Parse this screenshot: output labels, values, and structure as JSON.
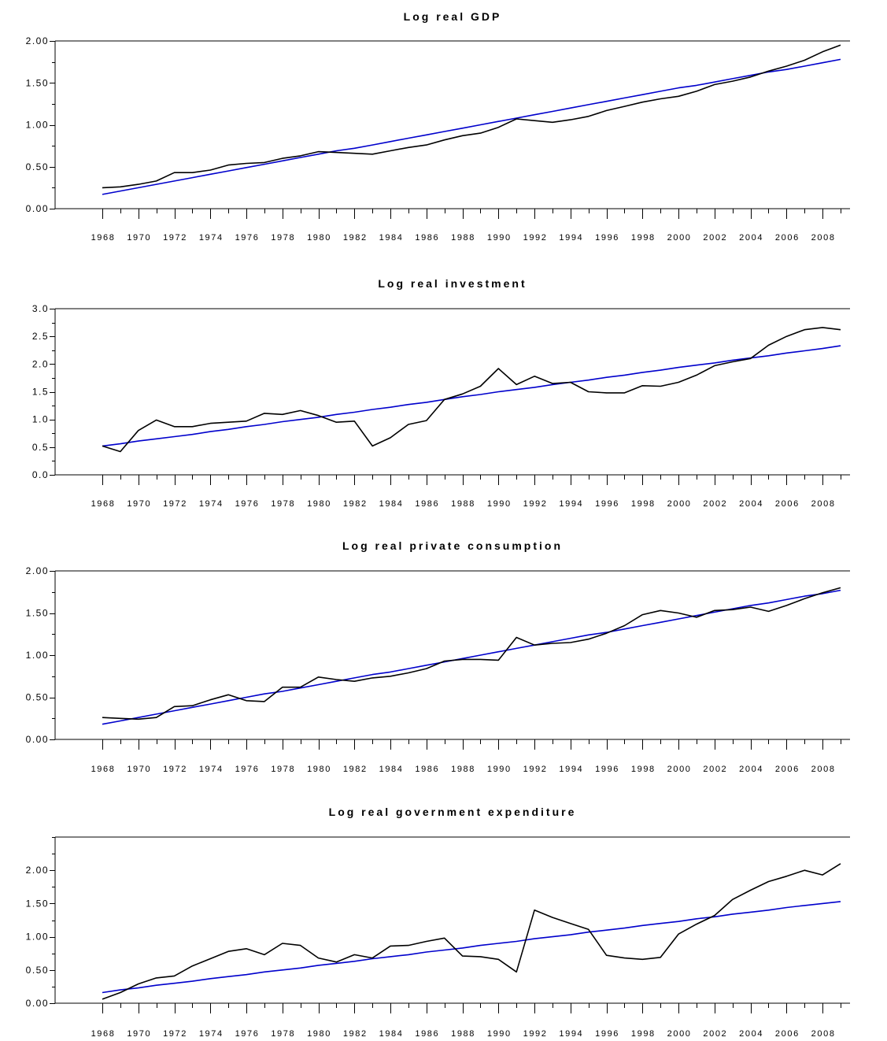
{
  "chart_data": [
    {
      "type": "line",
      "title": "Log real GDP",
      "x": [
        1968,
        1969,
        1970,
        1971,
        1972,
        1973,
        1974,
        1975,
        1976,
        1977,
        1978,
        1979,
        1980,
        1981,
        1982,
        1983,
        1984,
        1985,
        1986,
        1987,
        1988,
        1989,
        1990,
        1991,
        1992,
        1993,
        1994,
        1995,
        1996,
        1997,
        1998,
        1999,
        2000,
        2001,
        2002,
        2003,
        2004,
        2005,
        2006,
        2007,
        2008,
        2009
      ],
      "xticks": [
        "1968",
        "1970",
        "1972",
        "1974",
        "1976",
        "1978",
        "1980",
        "1982",
        "1984",
        "1986",
        "1988",
        "1990",
        "1992",
        "1994",
        "1996",
        "1998",
        "2000",
        "2002",
        "2004",
        "2006",
        "2008"
      ],
      "yticks": [
        "0.00",
        "0.50",
        "1.00",
        "1.50",
        "2.00"
      ],
      "ylim": [
        0,
        2.0
      ],
      "series": [
        {
          "color": "#000000",
          "values": [
            0.25,
            0.26,
            0.29,
            0.33,
            0.43,
            0.43,
            0.46,
            0.52,
            0.54,
            0.55,
            0.6,
            0.63,
            0.68,
            0.67,
            0.66,
            0.65,
            0.69,
            0.73,
            0.76,
            0.82,
            0.87,
            0.9,
            0.97,
            1.07,
            1.05,
            1.03,
            1.06,
            1.1,
            1.17,
            1.22,
            1.27,
            1.31,
            1.34,
            1.4,
            1.48,
            1.52,
            1.57,
            1.64,
            1.7,
            1.77,
            1.87,
            1.95
          ]
        },
        {
          "color": "#0000cc",
          "values": [
            0.17,
            0.21,
            0.25,
            0.29,
            0.33,
            0.37,
            0.41,
            0.45,
            0.49,
            0.53,
            0.57,
            0.61,
            0.65,
            0.69,
            0.72,
            0.76,
            0.8,
            0.84,
            0.88,
            0.92,
            0.96,
            1.0,
            1.04,
            1.08,
            1.12,
            1.16,
            1.2,
            1.24,
            1.28,
            1.32,
            1.36,
            1.4,
            1.44,
            1.47,
            1.51,
            1.55,
            1.59,
            1.63,
            1.66,
            1.7,
            1.74,
            1.78
          ]
        }
      ]
    },
    {
      "type": "line",
      "title": "Log real investment",
      "x": [
        1968,
        1969,
        1970,
        1971,
        1972,
        1973,
        1974,
        1975,
        1976,
        1977,
        1978,
        1979,
        1980,
        1981,
        1982,
        1983,
        1984,
        1985,
        1986,
        1987,
        1988,
        1989,
        1990,
        1991,
        1992,
        1993,
        1994,
        1995,
        1996,
        1997,
        1998,
        1999,
        2000,
        2001,
        2002,
        2003,
        2004,
        2005,
        2006,
        2007,
        2008,
        2009
      ],
      "xticks": [
        "1968",
        "1970",
        "1972",
        "1974",
        "1976",
        "1978",
        "1980",
        "1982",
        "1984",
        "1986",
        "1988",
        "1990",
        "1992",
        "1994",
        "1996",
        "1998",
        "2000",
        "2002",
        "2004",
        "2006",
        "2008"
      ],
      "yticks": [
        "0.0",
        "0.5",
        "1.0",
        "1.5",
        "2.0",
        "2.5",
        "3.0"
      ],
      "ylim": [
        0,
        3.0
      ],
      "series": [
        {
          "color": "#000000",
          "values": [
            0.52,
            0.42,
            0.8,
            0.99,
            0.87,
            0.87,
            0.93,
            0.95,
            0.97,
            1.11,
            1.09,
            1.16,
            1.07,
            0.95,
            0.97,
            0.52,
            0.67,
            0.91,
            0.98,
            1.36,
            1.46,
            1.6,
            1.92,
            1.63,
            1.78,
            1.65,
            1.67,
            1.5,
            1.48,
            1.48,
            1.61,
            1.6,
            1.67,
            1.8,
            1.97,
            2.04,
            2.1,
            2.34,
            2.5,
            2.62,
            2.66,
            2.62
          ]
        },
        {
          "color": "#0000cc",
          "values": [
            0.52,
            0.56,
            0.61,
            0.65,
            0.69,
            0.73,
            0.78,
            0.82,
            0.87,
            0.91,
            0.96,
            1.0,
            1.04,
            1.09,
            1.13,
            1.18,
            1.22,
            1.27,
            1.31,
            1.36,
            1.41,
            1.45,
            1.5,
            1.54,
            1.58,
            1.63,
            1.67,
            1.71,
            1.76,
            1.8,
            1.85,
            1.89,
            1.94,
            1.98,
            2.02,
            2.07,
            2.11,
            2.15,
            2.2,
            2.24,
            2.28,
            2.33
          ]
        }
      ]
    },
    {
      "type": "line",
      "title": "Log real private consumption",
      "x": [
        1968,
        1969,
        1970,
        1971,
        1972,
        1973,
        1974,
        1975,
        1976,
        1977,
        1978,
        1979,
        1980,
        1981,
        1982,
        1983,
        1984,
        1985,
        1986,
        1987,
        1988,
        1989,
        1990,
        1991,
        1992,
        1993,
        1994,
        1995,
        1996,
        1997,
        1998,
        1999,
        2000,
        2001,
        2002,
        2003,
        2004,
        2005,
        2006,
        2007,
        2008,
        2009
      ],
      "xticks": [
        "1968",
        "1970",
        "1972",
        "1974",
        "1976",
        "1978",
        "1980",
        "1982",
        "1984",
        "1986",
        "1988",
        "1990",
        "1992",
        "1994",
        "1996",
        "1998",
        "2000",
        "2002",
        "2004",
        "2006",
        "2008"
      ],
      "yticks": [
        "0.00",
        "0.50",
        "1.00",
        "1.50",
        "2.00"
      ],
      "ylim": [
        0,
        2.0
      ],
      "series": [
        {
          "color": "#000000",
          "values": [
            0.26,
            0.25,
            0.24,
            0.26,
            0.39,
            0.4,
            0.47,
            0.53,
            0.46,
            0.45,
            0.62,
            0.62,
            0.74,
            0.71,
            0.69,
            0.73,
            0.75,
            0.79,
            0.84,
            0.93,
            0.95,
            0.95,
            0.94,
            1.21,
            1.12,
            1.14,
            1.15,
            1.19,
            1.26,
            1.35,
            1.48,
            1.53,
            1.5,
            1.45,
            1.53,
            1.54,
            1.57,
            1.52,
            1.59,
            1.67,
            1.74,
            1.8
          ]
        },
        {
          "color": "#0000cc",
          "values": [
            0.18,
            0.22,
            0.26,
            0.3,
            0.34,
            0.38,
            0.42,
            0.46,
            0.5,
            0.54,
            0.57,
            0.61,
            0.65,
            0.69,
            0.73,
            0.77,
            0.8,
            0.84,
            0.88,
            0.92,
            0.96,
            1.0,
            1.04,
            1.08,
            1.12,
            1.16,
            1.2,
            1.24,
            1.27,
            1.31,
            1.35,
            1.39,
            1.43,
            1.47,
            1.51,
            1.55,
            1.59,
            1.62,
            1.66,
            1.7,
            1.73,
            1.77
          ]
        }
      ]
    },
    {
      "type": "line",
      "title": "Log real government expenditure",
      "x": [
        1968,
        1969,
        1970,
        1971,
        1972,
        1973,
        1974,
        1975,
        1976,
        1977,
        1978,
        1979,
        1980,
        1981,
        1982,
        1983,
        1984,
        1985,
        1986,
        1987,
        1988,
        1989,
        1990,
        1991,
        1992,
        1993,
        1994,
        1995,
        1996,
        1997,
        1998,
        1999,
        2000,
        2001,
        2002,
        2003,
        2004,
        2005,
        2006,
        2007,
        2008,
        2009
      ],
      "xticks": [
        "1968",
        "1970",
        "1972",
        "1974",
        "1976",
        "1978",
        "1980",
        "1982",
        "1984",
        "1986",
        "1988",
        "1990",
        "1992",
        "1994",
        "1996",
        "1998",
        "2000",
        "2002",
        "2004",
        "2006",
        "2008"
      ],
      "yticks": [
        "0.00",
        "0.50",
        "1.00",
        "1.50",
        "2.00"
      ],
      "ylim": [
        0,
        2.5
      ],
      "series": [
        {
          "color": "#000000",
          "values": [
            0.06,
            0.16,
            0.29,
            0.38,
            0.41,
            0.56,
            0.67,
            0.78,
            0.82,
            0.73,
            0.9,
            0.87,
            0.68,
            0.62,
            0.73,
            0.68,
            0.86,
            0.87,
            0.93,
            0.98,
            0.71,
            0.7,
            0.66,
            0.47,
            1.4,
            1.29,
            1.2,
            1.11,
            0.72,
            0.68,
            0.66,
            0.69,
            1.04,
            1.19,
            1.32,
            1.56,
            1.7,
            1.83,
            1.91,
            2.0,
            1.93,
            2.1
          ]
        },
        {
          "color": "#0000cc",
          "values": [
            0.16,
            0.2,
            0.23,
            0.27,
            0.3,
            0.33,
            0.37,
            0.4,
            0.43,
            0.47,
            0.5,
            0.53,
            0.57,
            0.6,
            0.63,
            0.67,
            0.7,
            0.73,
            0.77,
            0.8,
            0.83,
            0.87,
            0.9,
            0.93,
            0.97,
            1.0,
            1.03,
            1.07,
            1.1,
            1.13,
            1.17,
            1.2,
            1.23,
            1.27,
            1.3,
            1.34,
            1.37,
            1.4,
            1.44,
            1.47,
            1.5,
            1.53
          ]
        }
      ]
    }
  ]
}
